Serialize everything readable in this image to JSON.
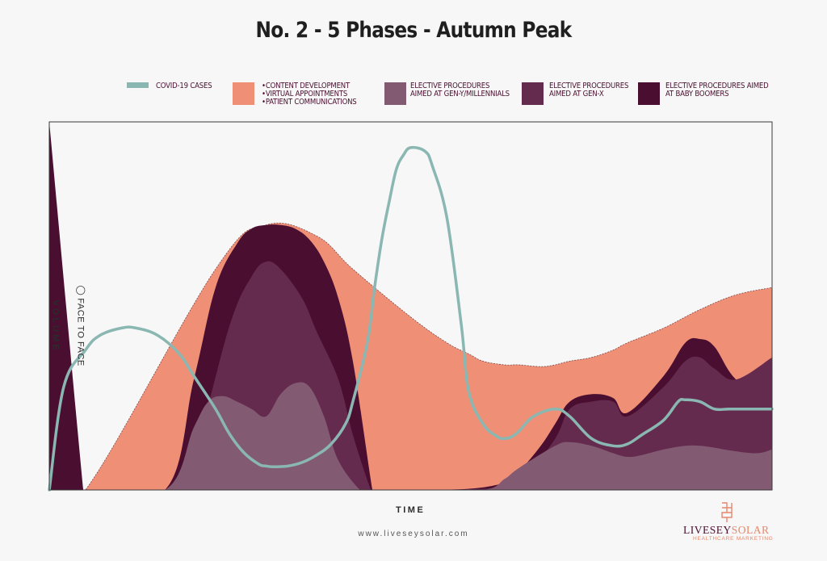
{
  "chart_data": {
    "type": "area",
    "title": "No. 2 - 5 Phases - Autumn Peak",
    "xlabel": "TIME",
    "ylabel": "VOLUME",
    "annotation": "FACE TO FACE",
    "legend_position": "top",
    "series": [
      {
        "key": "covid",
        "name": "COVID-19 CASES",
        "color": "#8ab7b2",
        "kind": "line",
        "x": [
          0,
          2,
          5,
          7,
          10,
          12,
          15,
          18,
          20,
          23,
          25,
          27,
          29,
          30,
          31,
          33,
          35,
          37,
          39,
          41,
          42,
          44,
          45,
          46,
          47,
          48,
          49,
          50,
          52,
          53,
          55,
          57,
          58,
          60,
          62,
          63,
          64,
          65,
          67,
          70,
          72,
          75,
          78,
          80,
          82,
          85,
          87,
          88,
          90,
          92,
          94,
          96,
          98,
          100
        ],
        "values": [
          0,
          28,
          38,
          42,
          44,
          44,
          42,
          37,
          31,
          22,
          15,
          10,
          7,
          6.5,
          6.3,
          6.5,
          7.5,
          9.5,
          12.5,
          18,
          24,
          40,
          55,
          68,
          78,
          87,
          91,
          93,
          92,
          88,
          74,
          45,
          27,
          18,
          14.5,
          14,
          14.5,
          16,
          20,
          22,
          20,
          14,
          12,
          12.5,
          15,
          19,
          24,
          24.5,
          24,
          22,
          22,
          22,
          22,
          22
        ]
      },
      {
        "key": "content",
        "name": "•CONTENT DEVELOPMENT\n•VIRTUAL APPOINTMENTS\n•PATIENT COMMUNICATIONS",
        "color": "#ef8f76",
        "x": [
          0,
          5,
          23,
          30,
          37,
          42,
          50,
          55,
          58,
          60,
          63,
          65,
          68,
          70,
          72,
          75,
          78,
          80,
          85,
          90,
          95,
          100
        ],
        "values": [
          0,
          0,
          60,
          72,
          69,
          60,
          47,
          40,
          37,
          35,
          34,
          34,
          33.5,
          34,
          35,
          36,
          38,
          40,
          44,
          49,
          53,
          55
        ]
      },
      {
        "key": "boomers",
        "name": "ELECTIVE PROCEDURES AIMED AT BABY BOOMERS",
        "color": "#4a0e31",
        "x": [
          0,
          4.7,
          5,
          16,
          20,
          23,
          26,
          28,
          30,
          32,
          34,
          36,
          38,
          40,
          42,
          44.7,
          45,
          50,
          58,
          63,
          65,
          68,
          70,
          72,
          75,
          78,
          80,
          85,
          88,
          90,
          92,
          95,
          100
        ],
        "values": [
          100,
          0,
          0,
          0,
          30,
          55,
          67,
          71,
          72,
          72,
          71,
          68,
          62,
          52,
          35,
          0,
          0,
          0,
          0.3,
          2,
          5,
          12,
          18,
          24,
          26,
          25,
          21,
          31,
          40,
          41,
          39,
          30,
          24
        ]
      },
      {
        "key": "genx",
        "name": "ELECTIVE PROCEDURES AIMED AT GEN-X",
        "color": "#652b4e",
        "x": [
          0,
          5,
          16,
          20,
          25,
          28,
          30,
          32,
          35,
          37,
          40,
          42,
          44.5,
          45,
          50,
          58,
          63,
          66,
          70,
          72,
          75,
          78,
          80,
          85,
          88,
          90,
          92,
          95,
          100
        ],
        "values": [
          0,
          0,
          0,
          10,
          45,
          58,
          62,
          60,
          52,
          43,
          30,
          15,
          0,
          0,
          0,
          0.2,
          1,
          4,
          14,
          22,
          24,
          24,
          20,
          28,
          35,
          36,
          33,
          30,
          36
        ]
      },
      {
        "key": "geny",
        "name": "ELECTIVE PROCEDURES AIMED AT GEN-Y/MILLENNIALS",
        "color": "#825a72",
        "x": [
          0,
          5,
          16,
          20,
          22,
          24,
          26,
          28,
          30,
          32,
          34,
          36,
          38,
          40,
          43,
          44,
          45,
          50,
          60,
          63,
          65,
          70,
          72,
          75,
          78,
          80,
          82,
          85,
          88,
          90,
          92,
          95,
          98,
          100
        ],
        "values": [
          0,
          0,
          0,
          17,
          24,
          25.5,
          24,
          22,
          20,
          26,
          29,
          28,
          20,
          8,
          0,
          0,
          0,
          0,
          0,
          3,
          6,
          12,
          13,
          12,
          10,
          9,
          9.5,
          11,
          12,
          12,
          11.5,
          10.5,
          10,
          11
        ]
      }
    ],
    "xlim": [
      0,
      100
    ],
    "ylim": [
      0,
      100
    ]
  },
  "legend": [
    {
      "key": "covid",
      "lines": [
        "COVID-19 CASES"
      ]
    },
    {
      "key": "content",
      "lines": [
        "•CONTENT DEVELOPMENT",
        "•VIRTUAL APPOINTMENTS",
        "•PATIENT COMMUNICATIONS"
      ]
    },
    {
      "key": "geny",
      "lines": [
        "ELECTIVE PROCEDURES",
        "AIMED AT GEN-Y/MILLENNIALS"
      ]
    },
    {
      "key": "genx",
      "lines": [
        "ELECTIVE PROCEDURES",
        "AIMED AT GEN-X"
      ]
    },
    {
      "key": "boomers",
      "lines": [
        "ELECTIVE PROCEDURES AIMED",
        "AT BABY BOOMERS"
      ]
    }
  ],
  "footer": {
    "website": "www.liveseysolar.com",
    "brand_first": "LIVESEY",
    "brand_second": "SOLAR",
    "brand_tagline": "HEALTHCARE MARKETING"
  },
  "colors": {
    "covid": "#8ab7b2",
    "content": "#ef8f76",
    "geny": "#825a72",
    "genx": "#652b4e",
    "boomers": "#4a0e31"
  }
}
